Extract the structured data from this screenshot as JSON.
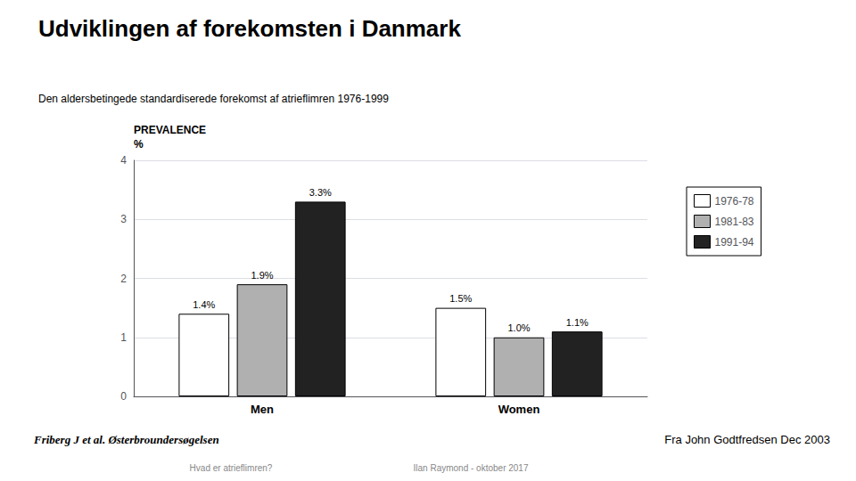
{
  "chart_data": {
    "type": "bar",
    "title": "Udviklingen af forekomsten i Danmark",
    "subtitle": "Den aldersbetingede standardiserede forekomst af atrieflimren 1976-1999",
    "annotations": [
      "PREVALENCE",
      "%",
      "Friberg J et al. Østerbroundersøgelsen",
      "Fra John Godtfredsen Dec 2003",
      "Hvad er atrieflimren?",
      "Ilan Raymond - oktober 2017"
    ],
    "categories": [
      "Men",
      "Women"
    ],
    "series": [
      {
        "name": "1976-78",
        "color": "#ffffff",
        "values": [
          1.4,
          1.5
        ],
        "value_labels": [
          "1.4%",
          "1.5%"
        ]
      },
      {
        "name": "1981-83",
        "color": "#b0b0b0",
        "values": [
          1.9,
          1.0
        ],
        "value_labels": [
          "1.9%",
          "1.0%"
        ]
      },
      {
        "name": "1991-94",
        "color": "#222222",
        "values": [
          3.3,
          1.1
        ],
        "value_labels": [
          "3.3%",
          "1.1%"
        ]
      }
    ],
    "ylim": [
      0,
      4
    ],
    "yticks": [
      0,
      1,
      2,
      3,
      4
    ],
    "grid": true,
    "legend": "right",
    "data_labels": true
  }
}
